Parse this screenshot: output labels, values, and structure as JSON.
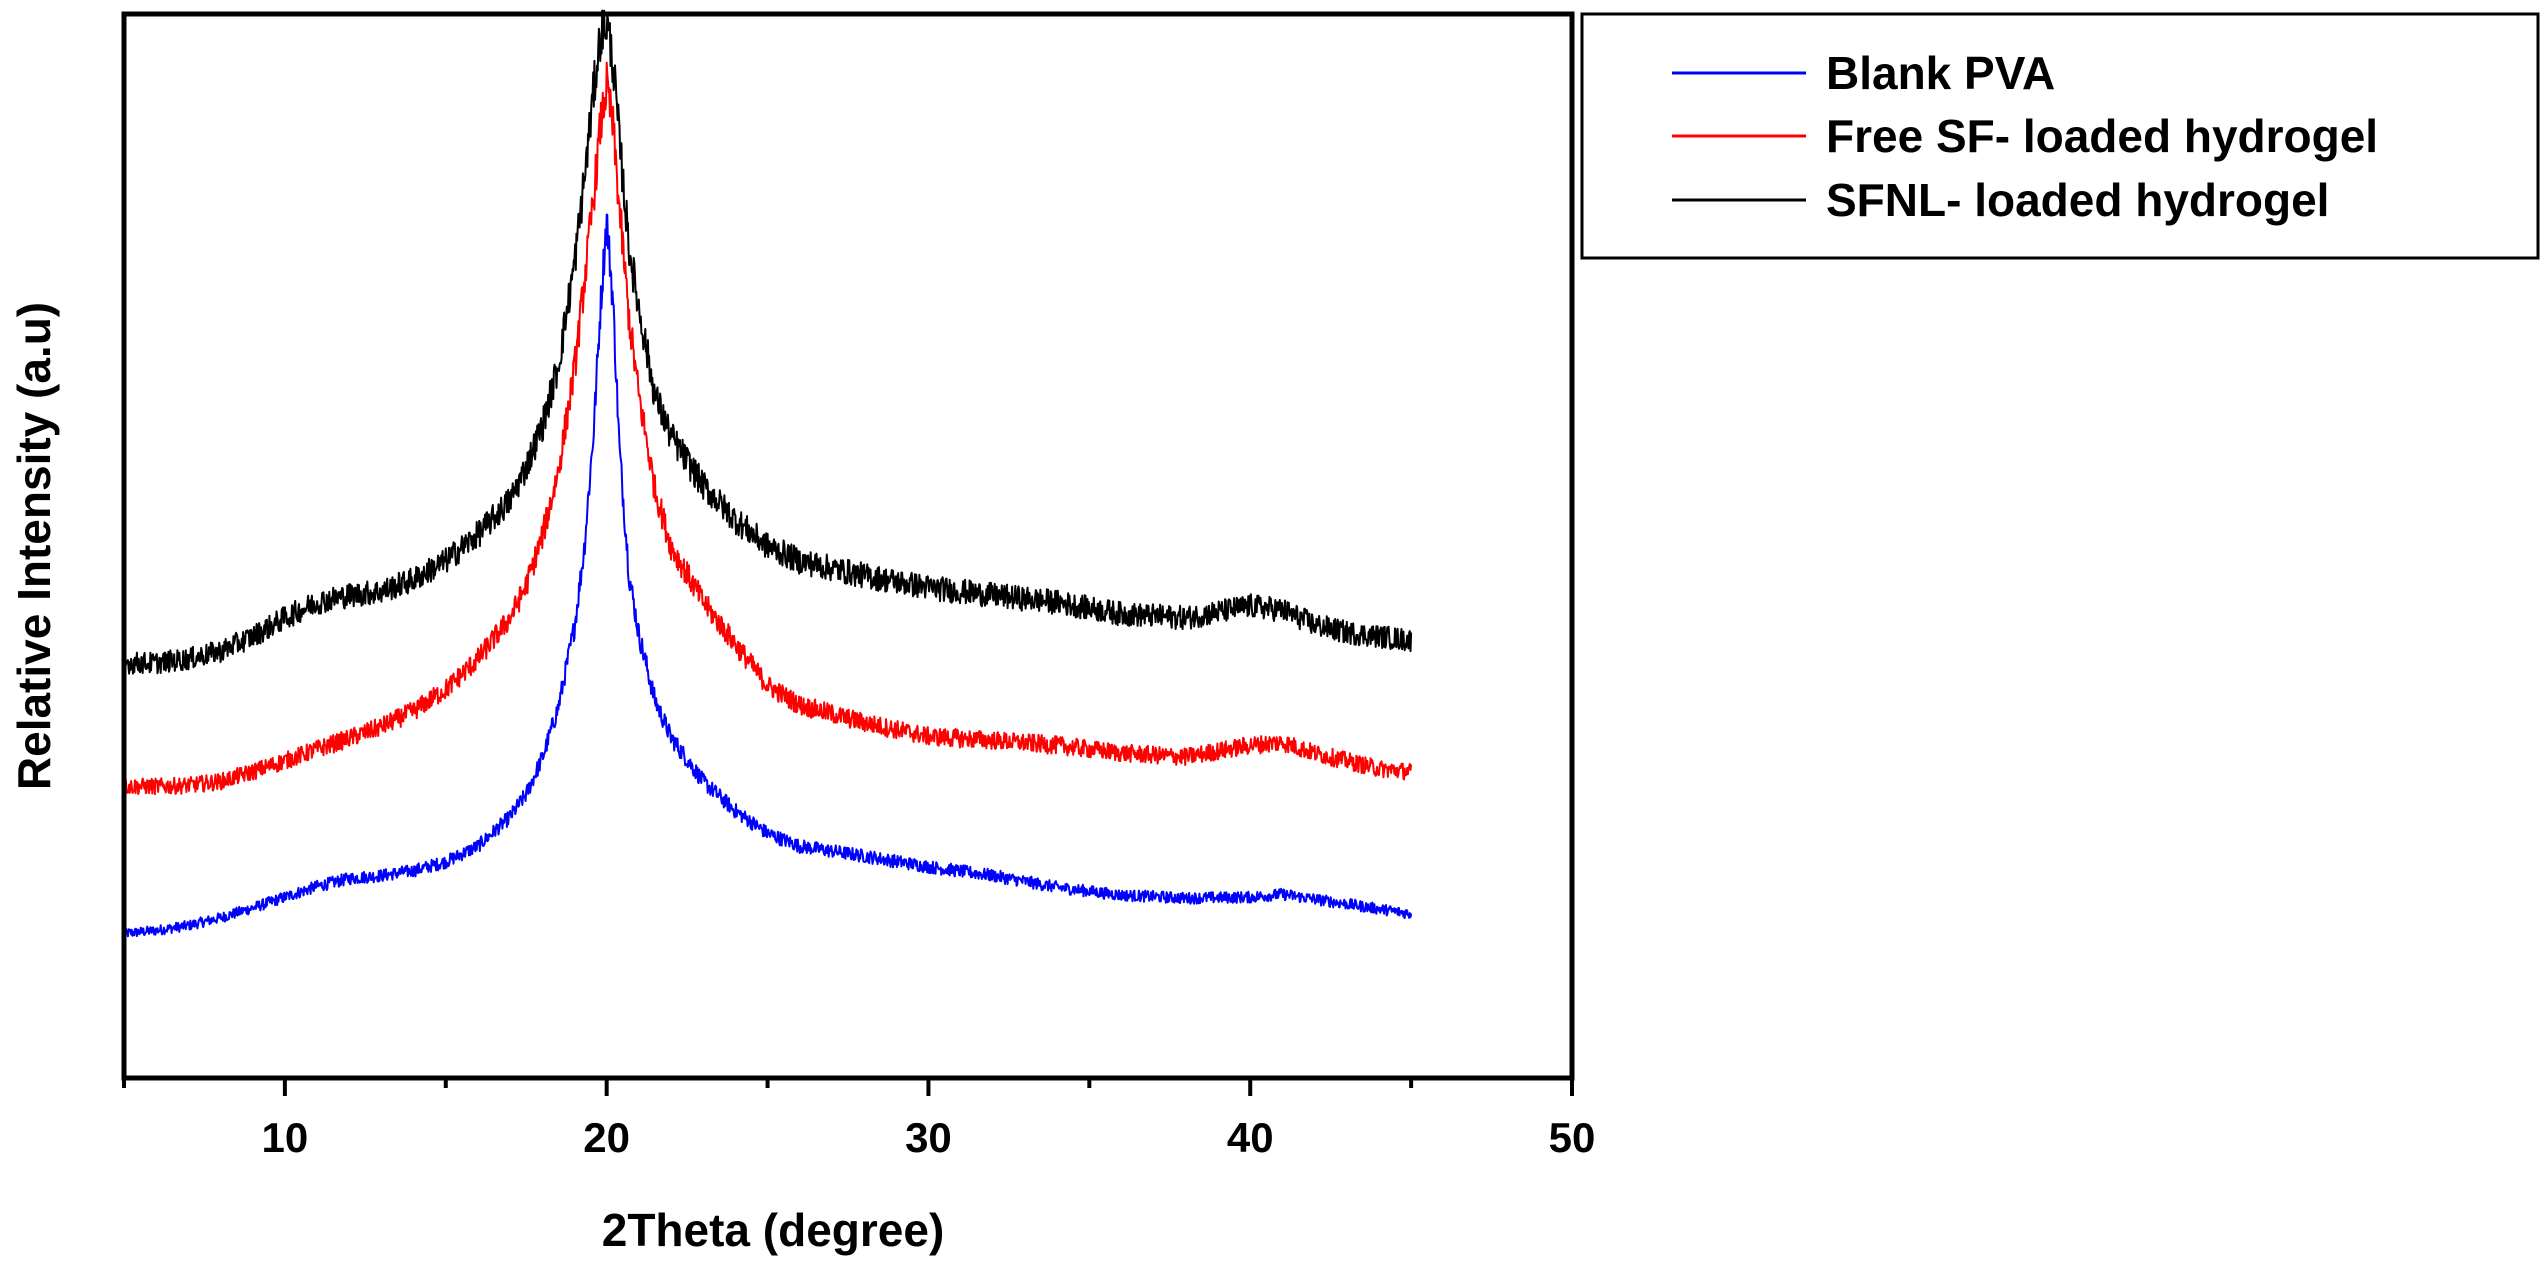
{
  "chart_data": {
    "type": "line",
    "title": "",
    "xlabel": "2Theta (degree)",
    "ylabel": "Relative Intensity (a.u)",
    "xlim": [
      5,
      50
    ],
    "ylim": [
      0,
      100
    ],
    "xticks": [
      10,
      20,
      30,
      40,
      50
    ],
    "yticks_shown": false,
    "grid": false,
    "legend_position": "top-right, outside plot",
    "x_range_of_data": [
      5,
      45
    ],
    "series": [
      {
        "name": "Blank PVA",
        "color": "#0000ff",
        "x": [
          5,
          6,
          7,
          8,
          9,
          10,
          11,
          12,
          13,
          14,
          15,
          16,
          17,
          17.5,
          18,
          18.5,
          19,
          19.3,
          19.6,
          19.8,
          20,
          20.2,
          20.4,
          20.7,
          21,
          21.5,
          22,
          23,
          24,
          25,
          26,
          28,
          30,
          32,
          34,
          36,
          38,
          40,
          41,
          42,
          43,
          44,
          45
        ],
        "values": [
          7,
          7.3,
          7.8,
          8.6,
          9.6,
          10.7,
          11.8,
          12.6,
          12.9,
          13.4,
          14.3,
          15.9,
          18.9,
          21.2,
          24.9,
          30.1,
          38.3,
          46.2,
          58.5,
          70.5,
          80,
          71.3,
          56.3,
          43.5,
          37.5,
          30.8,
          27,
          22.5,
          19.5,
          17.2,
          15.9,
          14.9,
          13.8,
          12.9,
          11.7,
          10.9,
          10.6,
          10.7,
          11,
          10.5,
          10,
          9.5,
          9
        ]
      },
      {
        "name": "Free SF- loaded hydrogel",
        "color": "#ff0000",
        "x": [
          5,
          6,
          7,
          8,
          9,
          10,
          11,
          12,
          13,
          14,
          15,
          16,
          17,
          17.5,
          18,
          18.5,
          19,
          19.3,
          19.6,
          19.8,
          20,
          20.2,
          20.4,
          20.7,
          21,
          21.5,
          22,
          23,
          24,
          25,
          26,
          28,
          30,
          32,
          34,
          36,
          38,
          40,
          41,
          42,
          43,
          44,
          45
        ],
        "values": [
          22,
          22,
          22.1,
          22.5,
          23.5,
          24.6,
          25.8,
          26.9,
          28.1,
          29.7,
          31.9,
          35,
          39.2,
          42.5,
          47.5,
          54.2,
          64.6,
          73.3,
          82.3,
          89.2,
          93.5,
          89.2,
          80.8,
          69.6,
          61.9,
          52.3,
          46.5,
          40.8,
          36.5,
          32.3,
          30.3,
          28.5,
          27.1,
          26.7,
          26.2,
          25.4,
          25,
          26.2,
          26.5,
          25.4,
          24.6,
          23.8,
          23.5
        ]
      },
      {
        "name": "SFNL- loaded hydrogel",
        "color": "#000000",
        "x": [
          5,
          6,
          7,
          8,
          9,
          10,
          11,
          12,
          13,
          14,
          15,
          16,
          17,
          17.5,
          18,
          18.5,
          19,
          19.3,
          19.6,
          19.8,
          20,
          20.2,
          20.4,
          20.7,
          21,
          21.5,
          22,
          23,
          24,
          25,
          26,
          28,
          30,
          32,
          34,
          36,
          38,
          40,
          41,
          42,
          43,
          44,
          45
        ],
        "values": [
          34.6,
          34.6,
          35,
          35.8,
          37.3,
          39.2,
          40.8,
          41.5,
          41.9,
          43.1,
          45,
          47.7,
          51.2,
          54.6,
          58.8,
          65,
          75.4,
          83.8,
          93.1,
          98.5,
          100,
          95.8,
          87.7,
          76.9,
          70.8,
          61.9,
          57.7,
          52.7,
          49.2,
          46.5,
          45,
          43.5,
          42.3,
          41.5,
          40.8,
          39.6,
          39.2,
          40.4,
          40,
          38.5,
          37.7,
          37.3,
          36.9
        ]
      }
    ]
  }
}
